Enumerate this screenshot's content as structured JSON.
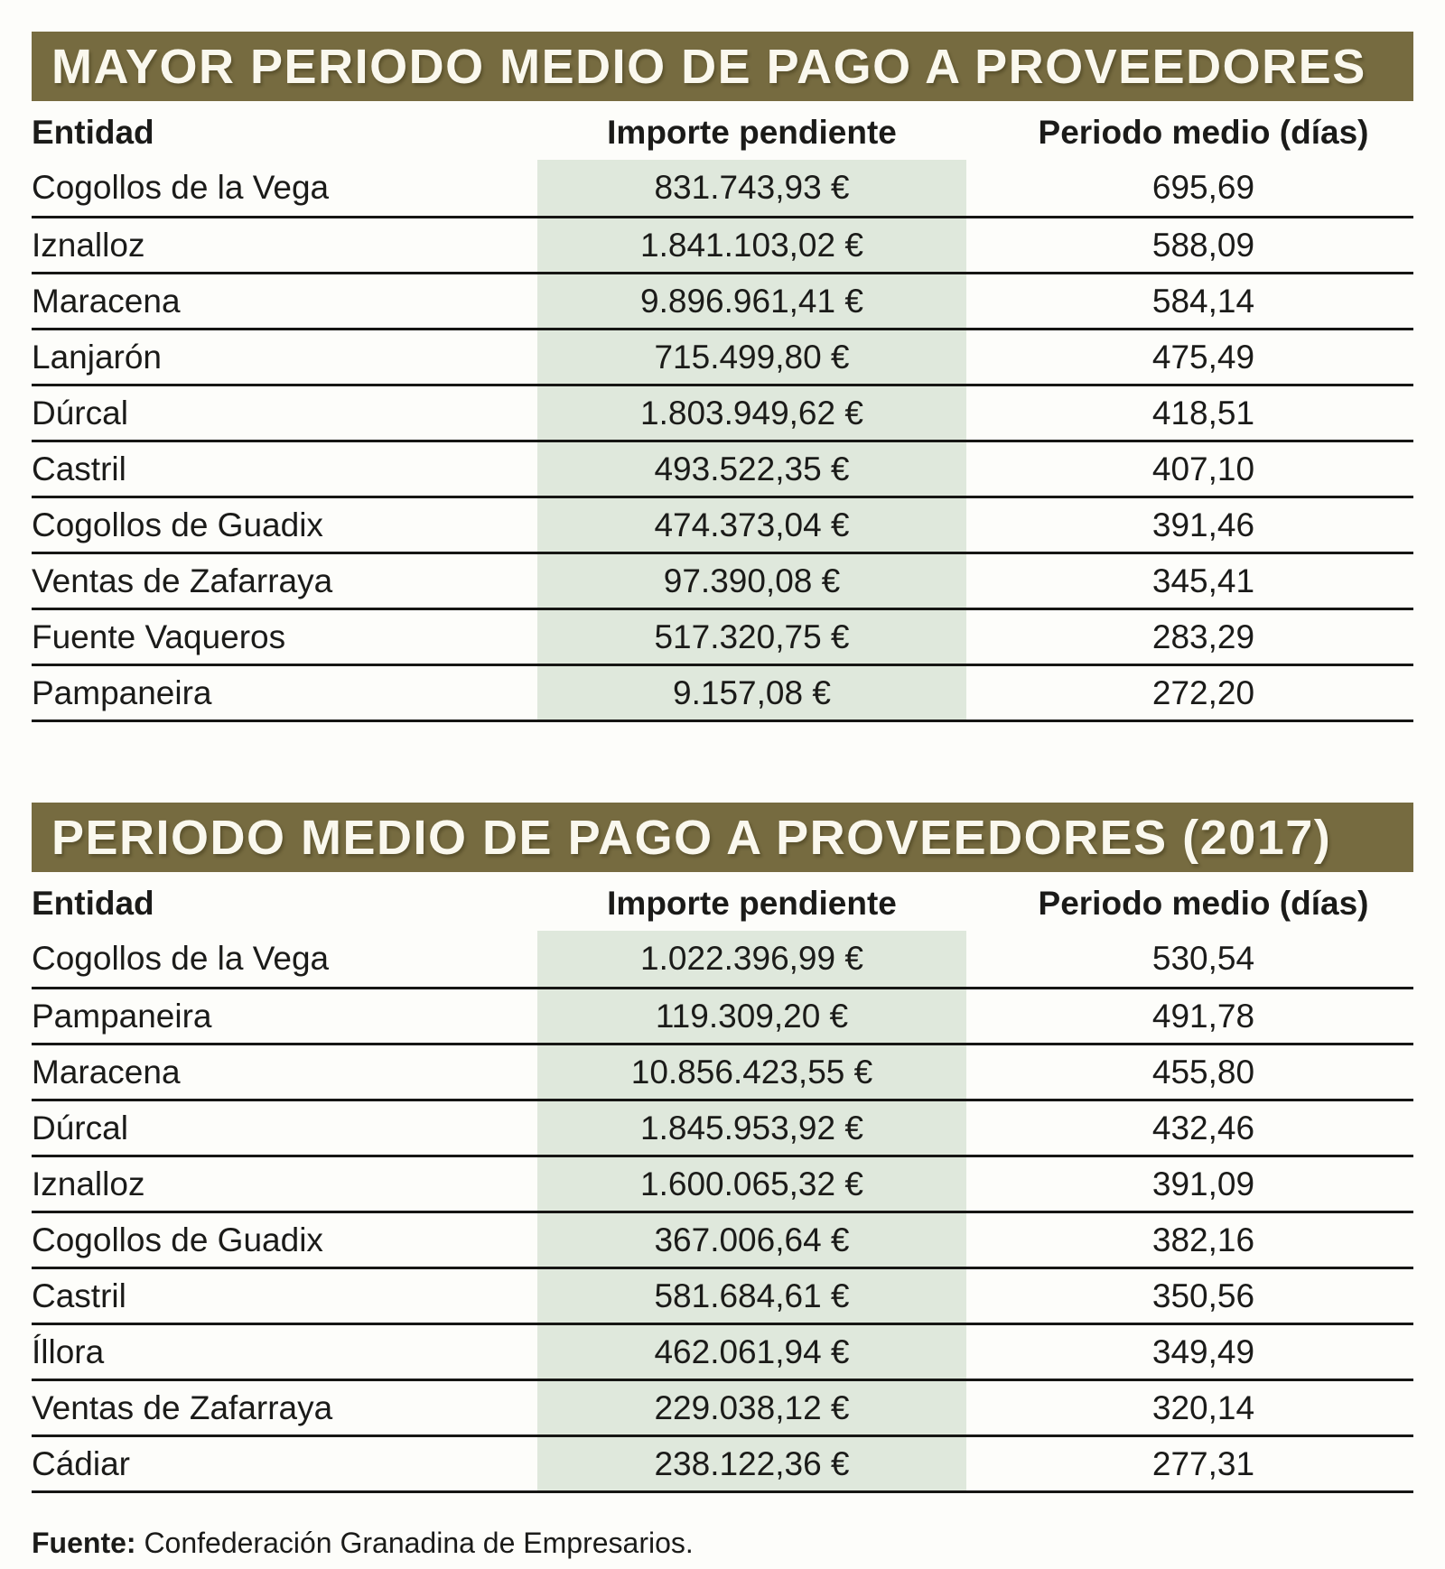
{
  "colors": {
    "banner_bg": "#766b40",
    "banner_text": "#faf8ee",
    "highlight_bg": "#dfe8dc",
    "rule": "#161614",
    "text": "#1b1b19"
  },
  "footer": {
    "label": "Fuente:",
    "source": "Confederación Granadina de Empresarios."
  },
  "chart_data": [
    {
      "type": "table",
      "title": "MAYOR PERIODO MEDIO DE PAGO A PROVEEDORES",
      "columns": [
        "Entidad",
        "Importe pendiente",
        "Periodo medio (días)"
      ],
      "rows": [
        [
          "Cogollos de la Vega",
          "831.743,93 €",
          "695,69"
        ],
        [
          "Iznalloz",
          "1.841.103,02 €",
          "588,09"
        ],
        [
          "Maracena",
          "9.896.961,41 €",
          "584,14"
        ],
        [
          "Lanjarón",
          "715.499,80 €",
          "475,49"
        ],
        [
          "Dúrcal",
          "1.803.949,62 €",
          "418,51"
        ],
        [
          "Castril",
          "493.522,35 €",
          "407,10"
        ],
        [
          "Cogollos de Guadix",
          "474.373,04 €",
          "391,46"
        ],
        [
          "Ventas de Zafarraya",
          "97.390,08 €",
          "345,41"
        ],
        [
          "Fuente Vaqueros",
          "517.320,75 €",
          "283,29"
        ],
        [
          "Pampaneira",
          "9.157,08 €",
          "272,20"
        ]
      ]
    },
    {
      "type": "table",
      "title": "PERIODO MEDIO DE PAGO A PROVEEDORES (2017)",
      "columns": [
        "Entidad",
        "Importe pendiente",
        "Periodo medio (días)"
      ],
      "rows": [
        [
          "Cogollos de la Vega",
          "1.022.396,99 €",
          "530,54"
        ],
        [
          "Pampaneira",
          "119.309,20 €",
          "491,78"
        ],
        [
          "Maracena",
          "10.856.423,55 €",
          "455,80"
        ],
        [
          "Dúrcal",
          "1.845.953,92 €",
          "432,46"
        ],
        [
          "Iznalloz",
          "1.600.065,32 €",
          "391,09"
        ],
        [
          "Cogollos de Guadix",
          "367.006,64 €",
          "382,16"
        ],
        [
          "Castril",
          "581.684,61 €",
          "350,56"
        ],
        [
          "Íllora",
          "462.061,94 €",
          "349,49"
        ],
        [
          "Ventas de Zafarraya",
          "229.038,12 €",
          "320,14"
        ],
        [
          "Cádiar",
          "238.122,36 €",
          "277,31"
        ]
      ]
    }
  ]
}
